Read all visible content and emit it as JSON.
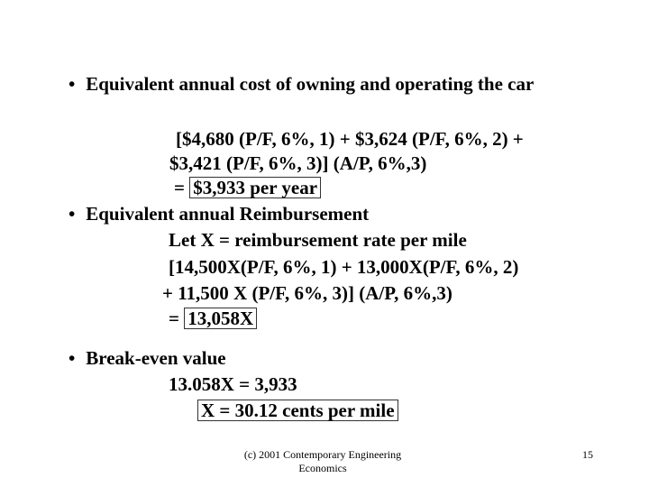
{
  "slide": {
    "bullet_glyph": "•",
    "section1": {
      "heading": "Equivalent annual cost of owning and operating the car",
      "line1": "[$4,680 (P/F, 6%, 1) + $3,624 (P/F, 6%, 2) +",
      "line2": "$3,421 (P/F, 6%, 3)] (A/P, 6%,3)",
      "eq_prefix": "=",
      "result": "$3,933 per year"
    },
    "section2": {
      "heading": "Equivalent annual Reimbursement",
      "line1": "Let X = reimbursement rate per mile",
      "line2": "[14,500X(P/F, 6%, 1) + 13,000X(P/F, 6%, 2)",
      "line3": "+ 11,500 X (P/F, 6%, 3)] (A/P, 6%,3)",
      "eq_prefix": "=",
      "result": "13,058X"
    },
    "section3": {
      "heading": "Break-even value",
      "line1": "13.058X = 3,933",
      "result": "X = 30.12 cents per mile"
    },
    "footer": {
      "line1": "(c) 2001 Contemporary Engineering",
      "line2": "Economics"
    },
    "page_number": "15"
  }
}
